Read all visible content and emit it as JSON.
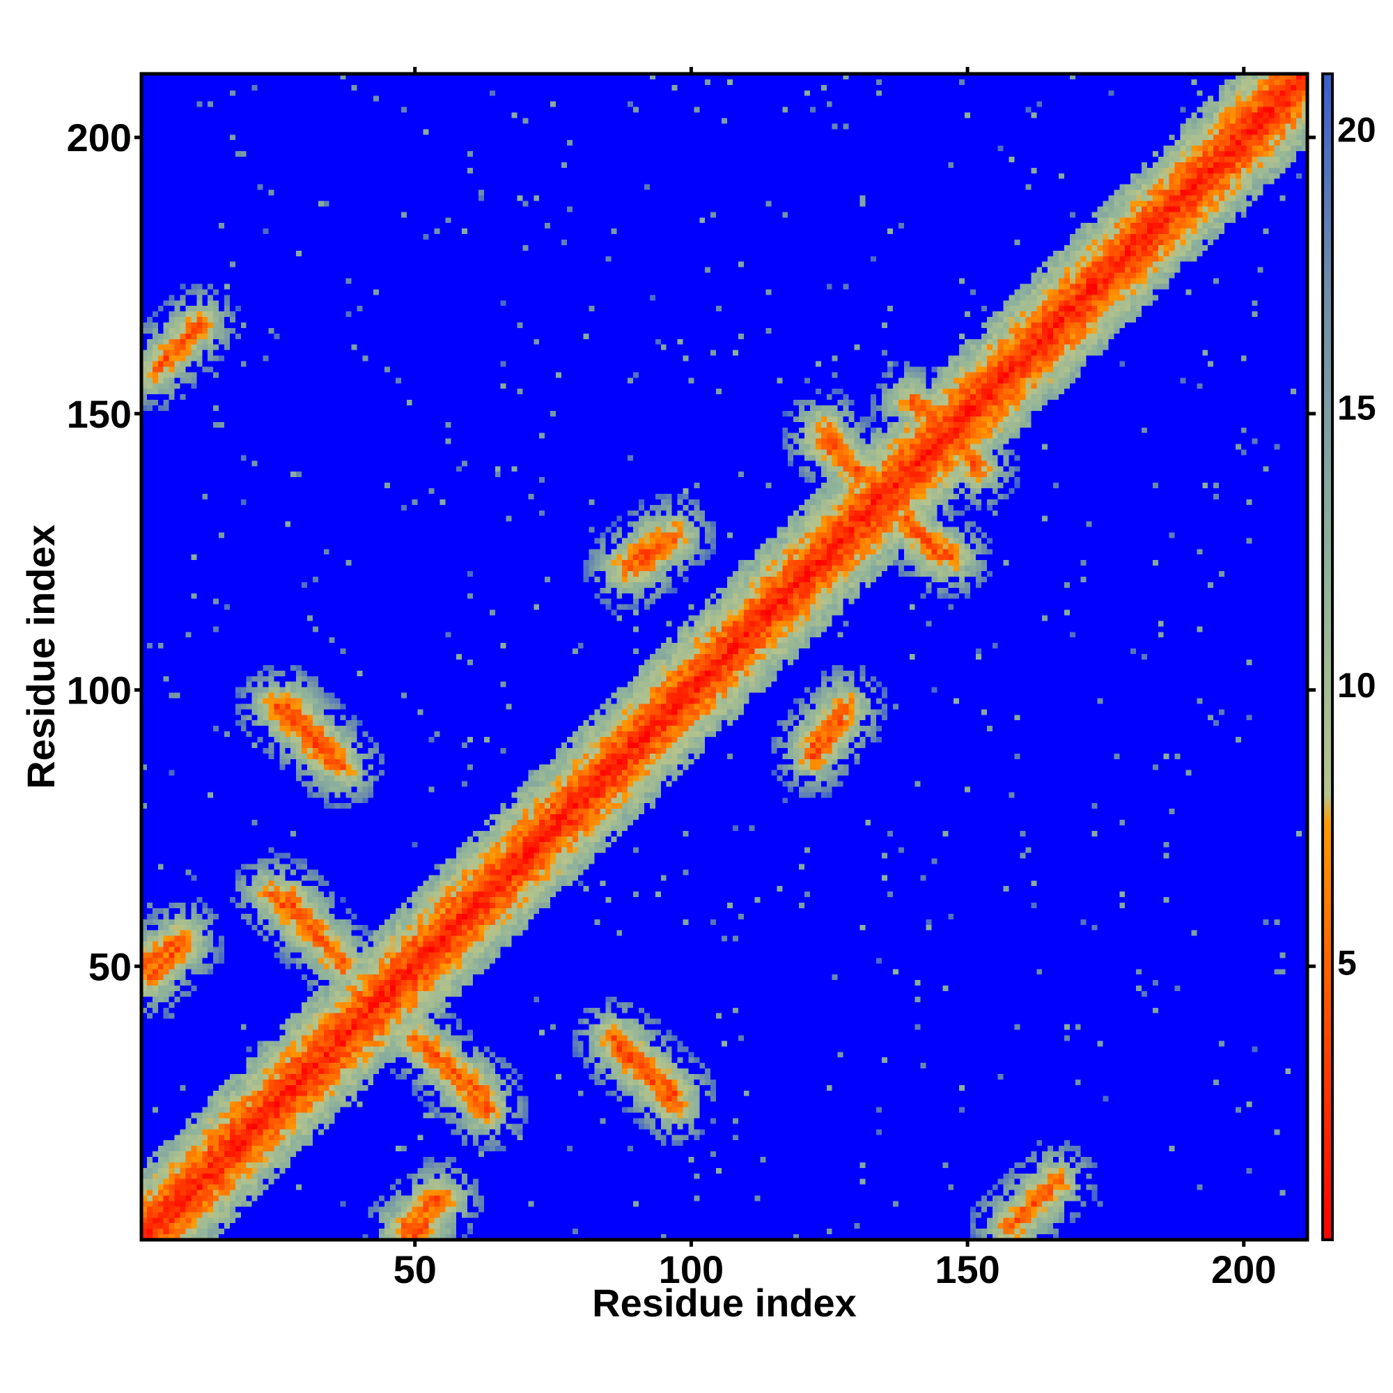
{
  "chart_data": {
    "type": "heatmap",
    "title": "",
    "xlabel": "Residue index",
    "ylabel": "Residue index",
    "x_range": [
      1,
      211
    ],
    "y_range": [
      1,
      211
    ],
    "x_ticks": [
      50,
      100,
      150,
      200
    ],
    "y_ticks": [
      50,
      100,
      150,
      200
    ],
    "x_tick_labels": [
      "50",
      "100",
      "150",
      "200"
    ],
    "y_tick_labels": [
      "50",
      "100",
      "150",
      "200"
    ],
    "colorbar": {
      "range": [
        0,
        21
      ],
      "ticks": [
        5,
        10,
        15,
        20
      ],
      "tick_labels": [
        "5",
        "10",
        "15",
        "20"
      ],
      "colors": {
        "red": "#ff0000",
        "orange": "#ff9900",
        "light_green": "#a6c496",
        "slate_blue": "#5c7ca8",
        "blue": "#0000ff"
      },
      "color_stops": [
        {
          "value": 0,
          "color": "#ff0000"
        },
        {
          "value": 3.5,
          "color": "#ff4400"
        },
        {
          "value": 7.5,
          "color": "#ff9900"
        },
        {
          "value": 8.0,
          "color": "#b7c48a"
        },
        {
          "value": 12.0,
          "color": "#8fb39a"
        },
        {
          "value": 17.0,
          "color": "#6f8faa"
        },
        {
          "value": 21.0,
          "color": "#3a5fcf"
        }
      ],
      "background_color": "#0000ff"
    },
    "description_of_features": {
      "diagonal": "strong red/orange band along x = y (distance ~0-5)",
      "contact_segments": [
        {
          "x": [
            25,
            35
          ],
          "y": [
            97,
            87
          ],
          "level": "orange"
        },
        {
          "x": [
            24,
            35
          ],
          "y": [
            63,
            53
          ],
          "level": "orange"
        },
        {
          "x": [
            50,
            62
          ],
          "y": [
            37,
            27
          ],
          "level": "orange"
        },
        {
          "x": [
            86,
            97
          ],
          "y": [
            37,
            27
          ],
          "level": "orange"
        },
        {
          "x": [
            88,
            94
          ],
          "y": [
            122,
            127
          ],
          "level": "orange"
        },
        {
          "x": [
            124,
            129
          ],
          "y": [
            147,
            140
          ],
          "level": "orange"
        },
        {
          "x": [
            139,
            145
          ],
          "y": [
            131,
            124
          ],
          "level": "orange"
        },
        {
          "x": [
            122,
            128
          ],
          "y": [
            90,
            97
          ],
          "level": "orange"
        },
        {
          "x": [
            6,
            11
          ],
          "y": [
            161,
            166
          ],
          "level": "orange"
        },
        {
          "x": [
            158,
            163
          ],
          "y": [
            3,
            8
          ],
          "level": "orange"
        },
        {
          "x": [
            1,
            8
          ],
          "y": [
            50,
            55
          ],
          "level": "orange"
        },
        {
          "x": [
            48,
            54
          ],
          "y": [
            2,
            8
          ],
          "level": "orange"
        },
        {
          "x": [
            147,
            152
          ],
          "y": [
            147,
            140
          ],
          "level": "orange"
        }
      ]
    }
  }
}
